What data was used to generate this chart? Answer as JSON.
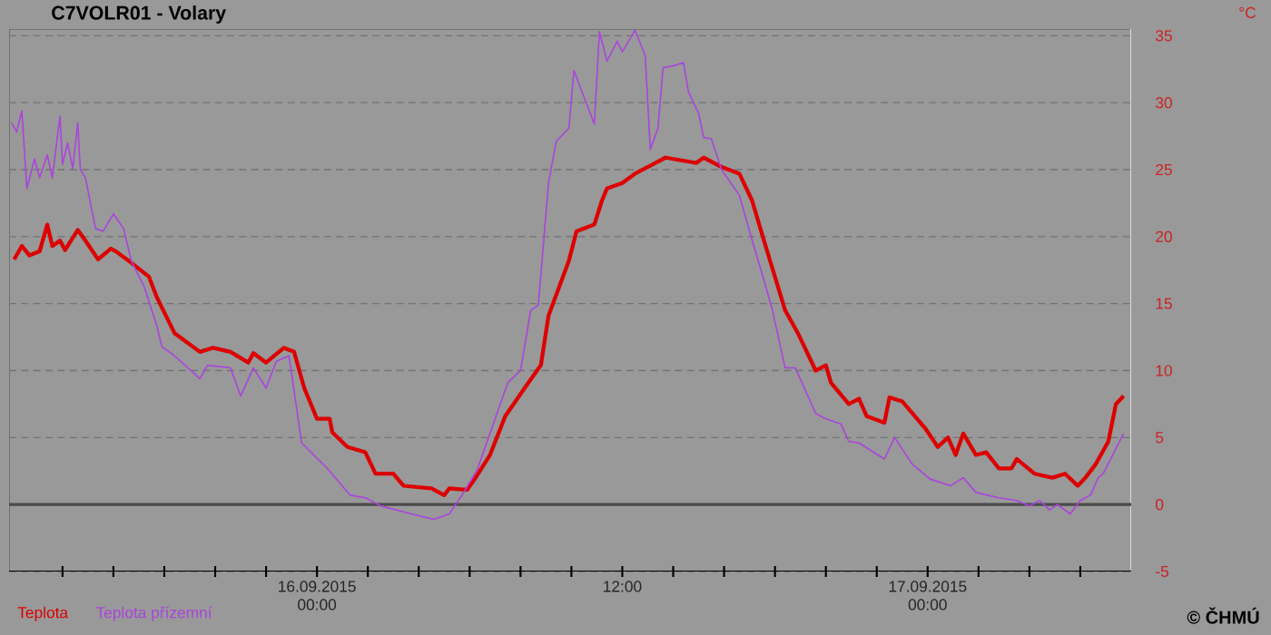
{
  "chart_data": {
    "type": "line",
    "title": "C7VOLR01 - Volary",
    "ylabel": "°C",
    "xlim": [
      "2015-09-15T11:54",
      "2015-09-17T08:00"
    ],
    "ylim": [
      -5,
      35.5
    ],
    "xticks": [
      {
        "value": "2015-09-15T14:00",
        "label": null
      },
      {
        "value": "2015-09-15T16:00",
        "label": null
      },
      {
        "value": "2015-09-15T18:00",
        "label": null
      },
      {
        "value": "2015-09-15T20:00",
        "label": null
      },
      {
        "value": "2015-09-15T22:00",
        "label": null
      },
      {
        "value": "2015-09-16T00:00",
        "label": "16.09.2015 00:00"
      },
      {
        "value": "2015-09-16T02:00",
        "label": null
      },
      {
        "value": "2015-09-16T04:00",
        "label": null
      },
      {
        "value": "2015-09-16T06:00",
        "label": null
      },
      {
        "value": "2015-09-16T08:00",
        "label": null
      },
      {
        "value": "2015-09-16T10:00",
        "label": null
      },
      {
        "value": "2015-09-16T12:00",
        "label": "12:00"
      },
      {
        "value": "2015-09-16T14:00",
        "label": null
      },
      {
        "value": "2015-09-16T16:00",
        "label": null
      },
      {
        "value": "2015-09-16T18:00",
        "label": null
      },
      {
        "value": "2015-09-16T20:00",
        "label": null
      },
      {
        "value": "2015-09-16T22:00",
        "label": null
      },
      {
        "value": "2015-09-17T00:00",
        "label": "17.09.2015 00:00"
      },
      {
        "value": "2015-09-17T02:00",
        "label": null
      },
      {
        "value": "2015-09-17T04:00",
        "label": null
      },
      {
        "value": "2015-09-17T06:00",
        "label": null
      }
    ],
    "yticks": [
      -5,
      0,
      5,
      10,
      15,
      20,
      25,
      30,
      35
    ],
    "grid": "y",
    "legend": "bottom left",
    "marker": "none",
    "line_style": "solid",
    "ref_lines": [
      {
        "axis": "y",
        "value": 0,
        "color": "#4a4a4a"
      }
    ],
    "annotations": [
      "© ČHMÚ"
    ],
    "series": [
      {
        "name": "Teplota",
        "color": "#dd0000",
        "x": [
          "2015-09-15T12:06",
          "2015-09-15T12:24",
          "2015-09-15T12:42",
          "2015-09-15T13:06",
          "2015-09-15T13:24",
          "2015-09-15T13:36",
          "2015-09-15T13:54",
          "2015-09-15T14:06",
          "2015-09-15T14:36",
          "2015-09-15T14:54",
          "2015-09-15T15:24",
          "2015-09-15T15:54",
          "2015-09-15T16:06",
          "2015-09-15T16:36",
          "2015-09-15T17:24",
          "2015-09-15T17:42",
          "2015-09-15T18:24",
          "2015-09-15T19:24",
          "2015-09-15T19:54",
          "2015-09-15T20:36",
          "2015-09-15T21:18",
          "2015-09-15T21:30",
          "2015-09-15T22:00",
          "2015-09-15T22:42",
          "2015-09-15T23:06",
          "2015-09-15T23:30",
          "2015-09-16T00:00",
          "2015-09-16T00:30",
          "2015-09-16T00:36",
          "2015-09-16T01:12",
          "2015-09-16T01:54",
          "2015-09-16T02:18",
          "2015-09-16T03:00",
          "2015-09-16T03:24",
          "2015-09-16T04:30",
          "2015-09-16T05:00",
          "2015-09-16T05:12",
          "2015-09-16T05:54",
          "2015-09-16T06:12",
          "2015-09-16T06:48",
          "2015-09-16T07:24",
          "2015-09-16T08:12",
          "2015-09-16T08:48",
          "2015-09-16T09:06",
          "2015-09-16T09:54",
          "2015-09-16T10:12",
          "2015-09-16T10:54",
          "2015-09-16T11:12",
          "2015-09-16T11:24",
          "2015-09-16T12:00",
          "2015-09-16T12:30",
          "2015-09-16T13:12",
          "2015-09-16T13:42",
          "2015-09-16T14:54",
          "2015-09-16T15:12",
          "2015-09-16T15:54",
          "2015-09-16T16:36",
          "2015-09-16T17:06",
          "2015-09-16T17:36",
          "2015-09-16T18:24",
          "2015-09-16T18:54",
          "2015-09-16T19:36",
          "2015-09-16T20:00",
          "2015-09-16T20:12",
          "2015-09-16T20:54",
          "2015-09-16T21:18",
          "2015-09-16T21:36",
          "2015-09-16T22:18",
          "2015-09-16T22:30",
          "2015-09-16T23:00",
          "2015-09-16T23:54",
          "2015-09-17T00:24",
          "2015-09-17T00:48",
          "2015-09-17T01:06",
          "2015-09-17T01:24",
          "2015-09-17T01:54",
          "2015-09-17T02:18",
          "2015-09-17T02:48",
          "2015-09-17T03:18",
          "2015-09-17T03:30",
          "2015-09-17T04:12",
          "2015-09-17T04:54",
          "2015-09-17T05:24",
          "2015-09-17T05:54",
          "2015-09-17T06:12",
          "2015-09-17T06:36",
          "2015-09-17T07:06",
          "2015-09-17T07:24",
          "2015-09-17T07:42"
        ],
        "values": [
          18.3,
          19.3,
          18.6,
          18.9,
          20.9,
          19.3,
          19.7,
          19.0,
          20.5,
          19.7,
          18.3,
          19.1,
          18.9,
          18.2,
          17.0,
          15.5,
          12.8,
          11.4,
          11.7,
          11.4,
          10.6,
          11.3,
          10.6,
          11.7,
          11.4,
          8.7,
          6.4,
          6.4,
          5.4,
          4.3,
          3.9,
          2.3,
          2.3,
          1.4,
          1.2,
          0.7,
          1.2,
          1.1,
          1.9,
          3.7,
          6.6,
          8.8,
          10.4,
          14.1,
          18.2,
          20.4,
          20.9,
          22.7,
          23.6,
          24.0,
          24.7,
          25.4,
          25.9,
          25.5,
          25.9,
          25.2,
          24.7,
          22.7,
          19.5,
          14.5,
          12.8,
          10.0,
          10.4,
          9.1,
          7.5,
          7.9,
          6.6,
          6.1,
          8.0,
          7.7,
          5.7,
          4.3,
          5.0,
          3.7,
          5.3,
          3.7,
          3.9,
          2.7,
          2.7,
          3.4,
          2.3,
          2.0,
          2.3,
          1.4,
          2.0,
          3.0,
          4.7,
          7.5,
          8.1
        ]
      },
      {
        "name": "Teplota přízemní",
        "color": "#aa44dd",
        "x": [
          "2015-09-15T12:00",
          "2015-09-15T12:12",
          "2015-09-15T12:24",
          "2015-09-15T12:36",
          "2015-09-15T12:54",
          "2015-09-15T13:06",
          "2015-09-15T13:24",
          "2015-09-15T13:36",
          "2015-09-15T13:54",
          "2015-09-15T14:00",
          "2015-09-15T14:12",
          "2015-09-15T14:24",
          "2015-09-15T14:36",
          "2015-09-15T14:42",
          "2015-09-15T14:54",
          "2015-09-15T15:18",
          "2015-09-15T15:36",
          "2015-09-15T16:00",
          "2015-09-15T16:24",
          "2015-09-15T16:42",
          "2015-09-15T17:12",
          "2015-09-15T17:42",
          "2015-09-15T17:54",
          "2015-09-15T18:24",
          "2015-09-15T19:24",
          "2015-09-15T19:42",
          "2015-09-15T20:36",
          "2015-09-15T21:00",
          "2015-09-15T21:30",
          "2015-09-15T22:00",
          "2015-09-15T22:24",
          "2015-09-15T22:54",
          "2015-09-15T23:24",
          "2015-09-16T00:24",
          "2015-09-16T01:18",
          "2015-09-16T01:54",
          "2015-09-16T02:30",
          "2015-09-16T03:42",
          "2015-09-16T04:36",
          "2015-09-16T05:12",
          "2015-09-16T05:42",
          "2015-09-16T06:18",
          "2015-09-16T07:30",
          "2015-09-16T08:00",
          "2015-09-16T08:24",
          "2015-09-16T08:42",
          "2015-09-16T09:06",
          "2015-09-16T09:24",
          "2015-09-16T09:54",
          "2015-09-16T10:06",
          "2015-09-16T10:30",
          "2015-09-16T10:54",
          "2015-09-16T11:06",
          "2015-09-16T11:24",
          "2015-09-16T11:48",
          "2015-09-16T12:00",
          "2015-09-16T12:30",
          "2015-09-16T12:54",
          "2015-09-16T13:06",
          "2015-09-16T13:24",
          "2015-09-16T13:36",
          "2015-09-16T14:06",
          "2015-09-16T14:24",
          "2015-09-16T14:36",
          "2015-09-16T15:00",
          "2015-09-16T15:12",
          "2015-09-16T15:30",
          "2015-09-16T15:54",
          "2015-09-16T16:36",
          "2015-09-16T17:00",
          "2015-09-16T17:30",
          "2015-09-16T17:54",
          "2015-09-16T18:24",
          "2015-09-16T18:48",
          "2015-09-16T19:36",
          "2015-09-16T20:00",
          "2015-09-16T20:36",
          "2015-09-16T20:54",
          "2015-09-16T21:18",
          "2015-09-16T22:18",
          "2015-09-16T22:42",
          "2015-09-16T23:24",
          "2015-09-17T00:06",
          "2015-09-17T00:54",
          "2015-09-17T01:24",
          "2015-09-17T01:54",
          "2015-09-17T02:48",
          "2015-09-17T03:30",
          "2015-09-17T04:00",
          "2015-09-17T04:24",
          "2015-09-17T04:48",
          "2015-09-17T05:06",
          "2015-09-17T05:36",
          "2015-09-17T06:00",
          "2015-09-17T06:24",
          "2015-09-17T06:42",
          "2015-09-17T06:54",
          "2015-09-17T07:42"
        ],
        "values": [
          28.5,
          27.8,
          29.4,
          23.6,
          25.8,
          24.4,
          26.1,
          24.4,
          29.0,
          25.4,
          27.0,
          25.1,
          28.5,
          25.0,
          24.4,
          20.6,
          20.4,
          21.7,
          20.6,
          18.2,
          16.3,
          13.4,
          11.8,
          11.1,
          9.4,
          10.4,
          10.2,
          8.1,
          10.2,
          8.7,
          10.7,
          11.1,
          4.6,
          2.7,
          0.7,
          0.5,
          -0.1,
          -0.7,
          -1.1,
          -0.7,
          0.7,
          2.6,
          9.1,
          10.0,
          14.5,
          14.9,
          24.0,
          27.1,
          28.1,
          32.4,
          30.4,
          28.4,
          35.3,
          33.1,
          34.6,
          33.8,
          35.4,
          33.5,
          26.5,
          28.1,
          32.6,
          32.8,
          33.0,
          30.8,
          29.2,
          27.4,
          27.3,
          25.0,
          23.1,
          20.4,
          17.2,
          14.5,
          10.2,
          10.2,
          6.8,
          6.4,
          6.0,
          4.7,
          4.6,
          3.4,
          5.0,
          3.0,
          1.9,
          1.4,
          2.0,
          0.9,
          0.5,
          0.3,
          -0.1,
          0.3,
          -0.4,
          0.0,
          -0.7,
          0.3,
          0.7,
          2.0,
          2.3,
          5.3
        ]
      }
    ]
  }
}
